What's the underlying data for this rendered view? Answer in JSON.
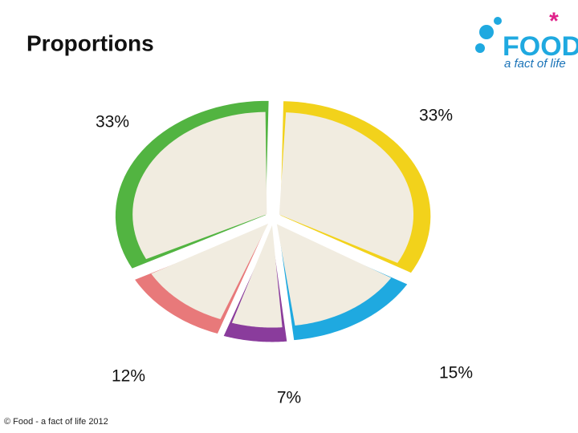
{
  "chart_data": {
    "type": "pie",
    "title": "Proportions",
    "values": [
      33,
      15,
      7,
      12,
      33
    ],
    "value_labels": [
      "33%",
      "15%",
      "7%",
      "12%",
      "33%"
    ],
    "colors": [
      "#f2d21b",
      "#1fa9e0",
      "#8a3c9c",
      "#e8797a",
      "#52b441"
    ]
  },
  "logo": {
    "word": "FOOD",
    "tagline": "a fact of life"
  },
  "footer": "© Food - a fact of life 2012"
}
